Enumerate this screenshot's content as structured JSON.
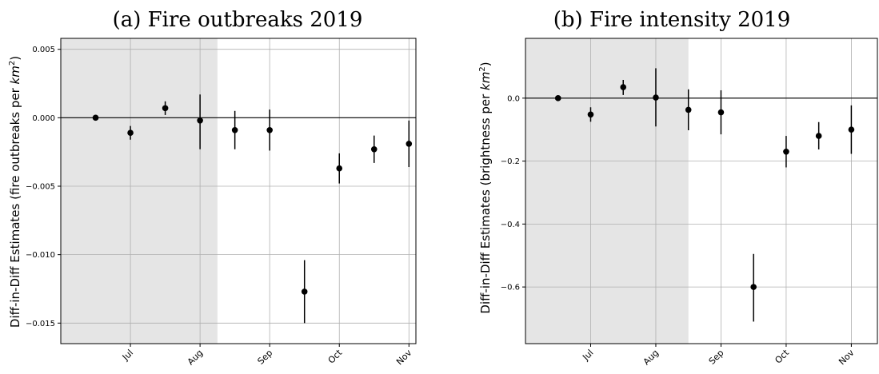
{
  "chart_data": [
    {
      "type": "scatter",
      "title": "(a) Fire outbreaks 2019",
      "ylabel_prefix": "Diff-in-Diff Estimates (fire outbreaks per ",
      "ylabel_unit": "km",
      "ylabel_sup": "2",
      "ylabel_suffix": ")",
      "ylim": [
        -0.0165,
        0.0058
      ],
      "xlim": [
        0.0,
        10.2
      ],
      "yticks": [
        0.005,
        0.0,
        -0.005,
        -0.01,
        -0.015
      ],
      "ytick_labels": [
        "0.005",
        "0.000",
        "−0.005",
        "−0.010",
        "−0.015"
      ],
      "xticks": [
        2,
        4,
        6,
        8,
        10
      ],
      "xtick_labels": [
        "Jul",
        "Aug",
        "Sep",
        "Oct",
        "Nov"
      ],
      "shaded_region": [
        0.0,
        4.5
      ],
      "zero_line": 0,
      "grid": true,
      "points": {
        "x": [
          1,
          2,
          3,
          4,
          5,
          6,
          7,
          8,
          9,
          10
        ],
        "y": [
          0.0,
          -0.0011,
          0.0007,
          -0.0002,
          -0.0009,
          -0.0009,
          -0.0127,
          -0.0037,
          -0.0023,
          -0.0019
        ],
        "lower": [
          0.0,
          -0.0016,
          0.0002,
          -0.0023,
          -0.0023,
          -0.0024,
          -0.015,
          -0.0048,
          -0.0033,
          -0.0036
        ],
        "upper": [
          0.0,
          -0.0006,
          0.0012,
          0.0017,
          0.0005,
          0.0006,
          -0.0104,
          -0.0026,
          -0.0013,
          -0.0002
        ]
      }
    },
    {
      "type": "scatter",
      "title": "(b) Fire intensity 2019",
      "ylabel_prefix": "Diff-in-Diff Estimates (brightness per ",
      "ylabel_unit": "km",
      "ylabel_sup": "2",
      "ylabel_suffix": ")",
      "ylim": [
        -0.78,
        0.19
      ],
      "xlim": [
        0.0,
        10.8
      ],
      "yticks": [
        0.0,
        -0.2,
        -0.4,
        -0.6
      ],
      "ytick_labels": [
        "0.0",
        "−0.2",
        "−0.4",
        "−0.6"
      ],
      "xticks": [
        2,
        4,
        6,
        8,
        10
      ],
      "xtick_labels": [
        "Jul",
        "Aug",
        "Sep",
        "Oct",
        "Nov"
      ],
      "shaded_region": [
        0.0,
        5.0
      ],
      "zero_line": 0,
      "grid": true,
      "points": {
        "x": [
          1,
          2,
          3,
          4,
          5,
          6,
          7,
          8,
          9,
          10
        ],
        "y": [
          0.0,
          -0.052,
          0.035,
          0.002,
          -0.037,
          -0.045,
          -0.6,
          -0.17,
          -0.12,
          -0.1
        ],
        "lower": [
          0.0,
          -0.075,
          0.01,
          -0.09,
          -0.102,
          -0.115,
          -0.71,
          -0.22,
          -0.163,
          -0.177
        ],
        "upper": [
          0.0,
          -0.029,
          0.058,
          0.095,
          0.028,
          0.025,
          -0.495,
          -0.12,
          -0.076,
          -0.023
        ]
      }
    }
  ]
}
